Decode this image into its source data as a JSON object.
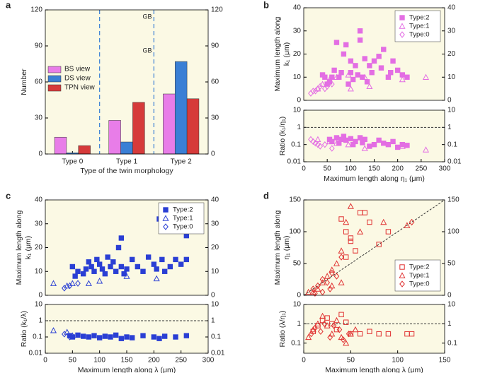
{
  "chart_data": [
    {
      "type": "bar",
      "panel": "a",
      "ylabel": [
        "Number"
      ],
      "xlabel": "Type of the twin morphology",
      "categories": [
        "Type 0",
        "Type 1",
        "Type 2"
      ],
      "series": [
        {
          "name": "BS view",
          "color": "#e87de8",
          "values": [
            14,
            28,
            50
          ]
        },
        {
          "name": "DS view",
          "color": "#3a7fd5",
          "values": [
            1,
            10,
            77
          ]
        },
        {
          "name": "TPN view",
          "color": "#d63a3a",
          "values": [
            7,
            43,
            46
          ]
        }
      ],
      "ylim": [
        0,
        120
      ],
      "yticks": [
        0,
        30,
        60,
        90,
        120
      ],
      "right_axis": true,
      "legend": "middle-left",
      "annotations": [
        "GB",
        "GB"
      ]
    },
    {
      "type": "scatter",
      "panel": "b",
      "ylabel": [
        "Maximum length along",
        "k₁ (μm)"
      ],
      "xlim": [
        0,
        300
      ],
      "ylim": [
        0,
        40
      ],
      "yticks": [
        0,
        10,
        20,
        30,
        40
      ],
      "right_axis": true,
      "legend": "top-right",
      "series": [
        {
          "name": "Type:2",
          "color": "#e36ee3",
          "marker": "square",
          "x": [
            70,
            85,
            90,
            100,
            100,
            110,
            120,
            120,
            125,
            130,
            140,
            150,
            160,
            165,
            170,
            180,
            185,
            190,
            200,
            210,
            220,
            55,
            60,
            65,
            75,
            80,
            95,
            105,
            115,
            135,
            145,
            40,
            45,
            50
          ],
          "values": [
            25,
            20,
            24,
            17,
            12,
            15,
            30,
            26,
            10,
            18,
            15,
            17,
            19,
            14,
            22,
            10,
            12,
            17,
            13,
            11,
            10,
            8,
            10,
            13,
            10,
            12,
            7,
            9,
            11,
            8,
            12,
            11,
            10,
            7
          ]
        },
        {
          "name": "Type:1",
          "color": "#e36ee3",
          "marker": "triangle-open",
          "x": [
            30,
            40,
            55,
            70,
            95,
            130,
            140,
            210,
            260,
            100
          ],
          "values": [
            5,
            7,
            9,
            10,
            11,
            10,
            6,
            9,
            10,
            5
          ]
        },
        {
          "name": "Type:0",
          "color": "#e36ee3",
          "marker": "diamond-open",
          "x": [
            15,
            20,
            25,
            30,
            35,
            45,
            50,
            60
          ],
          "values": [
            3,
            4,
            4,
            5,
            6,
            5,
            6,
            7
          ]
        }
      ]
    },
    {
      "type": "scatter",
      "ylabel": [
        "Ratio (k₁/η₁)"
      ],
      "xlabel": "Maximum length along η₁ (μm)",
      "xlim": [
        0,
        300
      ],
      "xticks": [
        0,
        50,
        100,
        150,
        200,
        250,
        300
      ],
      "ylim": [
        0.01,
        10
      ],
      "yticks": [
        0.01,
        0.1,
        1,
        10
      ],
      "log_y": true,
      "right_axis": true,
      "refline": 1,
      "series": [
        {
          "color": "#e36ee3",
          "marker": "square",
          "x": [
            55,
            60,
            70,
            75,
            80,
            85,
            90,
            100,
            105,
            110,
            120,
            125,
            130,
            140,
            150,
            160,
            170,
            180,
            190,
            200,
            210,
            220
          ],
          "values": [
            0.2,
            0.15,
            0.25,
            0.12,
            0.2,
            0.3,
            0.18,
            0.22,
            0.1,
            0.15,
            0.25,
            0.13,
            0.2,
            0.08,
            0.1,
            0.18,
            0.12,
            0.1,
            0.15,
            0.07,
            0.1,
            0.09
          ]
        },
        {
          "color": "#e36ee3",
          "marker": "triangle-open",
          "x": [
            30,
            55,
            70,
            95,
            130,
            210,
            260
          ],
          "values": [
            0.2,
            0.15,
            0.12,
            0.1,
            0.06,
            0.08,
            0.05
          ]
        },
        {
          "color": "#e36ee3",
          "marker": "diamond-open",
          "x": [
            15,
            20,
            25,
            30,
            35,
            45,
            60
          ],
          "values": [
            0.2,
            0.15,
            0.12,
            0.1,
            0.08,
            0.1,
            0.06
          ]
        }
      ]
    },
    {
      "type": "scatter",
      "panel": "c",
      "ylabel": [
        "Maximum length along",
        "k₁ (μm)"
      ],
      "xlim": [
        0,
        300
      ],
      "ylim": [
        0,
        40
      ],
      "yticks": [
        0,
        10,
        20,
        30,
        40
      ],
      "right_axis": true,
      "legend": "top-right",
      "series": [
        {
          "name": "Type:2",
          "color": "#2a3fd4",
          "marker": "square",
          "x": [
            50,
            55,
            60,
            70,
            75,
            80,
            85,
            90,
            95,
            100,
            105,
            110,
            115,
            120,
            125,
            130,
            135,
            140,
            140,
            145,
            150,
            160,
            170,
            180,
            190,
            200,
            205,
            210,
            215,
            220,
            230,
            240,
            250,
            260,
            260
          ],
          "values": [
            12,
            8,
            10,
            9,
            11,
            14,
            12,
            10,
            15,
            13,
            11,
            9,
            16,
            12,
            14,
            10,
            20,
            24,
            12,
            9,
            11,
            15,
            12,
            10,
            16,
            13,
            11,
            32,
            15,
            10,
            12,
            15,
            13,
            25,
            15
          ]
        },
        {
          "name": "Type:1",
          "color": "#2a3fd4",
          "marker": "triangle-open",
          "x": [
            15,
            40,
            50,
            80,
            100,
            150,
            205
          ],
          "values": [
            5,
            4,
            5,
            5,
            6,
            8,
            7
          ]
        },
        {
          "name": "Type:0",
          "color": "#2a3fd4",
          "marker": "diamond-open",
          "x": [
            35,
            45,
            60
          ],
          "values": [
            3,
            4,
            5
          ]
        }
      ]
    },
    {
      "type": "scatter",
      "ylabel": [
        "Ratio (k₁/λ)"
      ],
      "xlabel": "Maximum length along λ (μm)",
      "xlim": [
        0,
        300
      ],
      "xticks": [
        0,
        50,
        100,
        150,
        200,
        250,
        300
      ],
      "ylim": [
        0.01,
        10
      ],
      "yticks": [
        0.01,
        0.1,
        1,
        10
      ],
      "log_y": true,
      "right_axis": true,
      "refline": 1,
      "series": [
        {
          "color": "#2a3fd4",
          "marker": "square",
          "x": [
            45,
            50,
            60,
            70,
            80,
            90,
            100,
            110,
            120,
            130,
            140,
            150,
            160,
            180,
            200,
            210,
            220,
            240,
            260
          ],
          "values": [
            0.12,
            0.1,
            0.13,
            0.11,
            0.1,
            0.12,
            0.09,
            0.11,
            0.1,
            0.13,
            0.08,
            0.1,
            0.09,
            0.12,
            0.1,
            0.08,
            0.11,
            0.1,
            0.12
          ]
        },
        {
          "color": "#2a3fd4",
          "marker": "triangle-open",
          "x": [
            15,
            40,
            50
          ],
          "values": [
            0.25,
            0.2,
            0.12
          ]
        },
        {
          "color": "#2a3fd4",
          "marker": "diamond-open",
          "x": [
            35,
            45
          ],
          "values": [
            0.15,
            0.1
          ]
        }
      ]
    },
    {
      "type": "scatter",
      "panel": "d",
      "ylabel": [
        "Maximum length along",
        "η₁ (μm)"
      ],
      "xlim": [
        0,
        150
      ],
      "ylim": [
        0,
        150
      ],
      "yticks": [
        0,
        50,
        100,
        150
      ],
      "right_axis": true,
      "legend": "bottom-right",
      "diagonal": true,
      "series": [
        {
          "name": "Type:2",
          "color": "#e03030",
          "marker": "square-open",
          "x": [
            40,
            45,
            50,
            55,
            60,
            65,
            70,
            80,
            90,
            50,
            45
          ],
          "values": [
            120,
            100,
            90,
            70,
            130,
            130,
            115,
            80,
            100,
            85,
            60
          ]
        },
        {
          "name": "Type:1",
          "color": "#e03030",
          "marker": "triangle-open",
          "x": [
            50,
            60,
            45,
            40,
            35,
            30,
            25,
            20,
            15,
            10,
            30,
            40,
            85,
            110,
            5
          ],
          "values": [
            140,
            100,
            115,
            70,
            50,
            40,
            30,
            20,
            10,
            5,
            15,
            20,
            115,
            110,
            5
          ]
        },
        {
          "name": "Type:0",
          "color": "#e03030",
          "marker": "diamond-open",
          "x": [
            10,
            15,
            20,
            25,
            30,
            35,
            40,
            20,
            12,
            28,
            115
          ],
          "values": [
            10,
            15,
            25,
            20,
            35,
            30,
            60,
            5,
            3,
            10,
            115
          ]
        }
      ]
    },
    {
      "type": "scatter",
      "ylabel": [
        "Ratio (λ/η₁)"
      ],
      "xlabel": "Maximum length along λ (μm)",
      "xlim": [
        0,
        150
      ],
      "xticks": [
        0,
        50,
        100,
        150
      ],
      "ylim": [
        0.03,
        10
      ],
      "yticks": [
        0.1,
        1,
        10
      ],
      "log_y": true,
      "right_axis": true,
      "refline": 1,
      "series": [
        {
          "color": "#e03030",
          "marker": "square-open",
          "x": [
            10,
            15,
            20,
            25,
            30,
            35,
            40,
            45,
            50,
            60,
            70,
            80,
            90,
            110,
            115
          ],
          "values": [
            0.4,
            0.8,
            1.5,
            2,
            1,
            0.5,
            3,
            1.2,
            0.3,
            0.3,
            0.4,
            0.3,
            0.3,
            0.3,
            0.3
          ]
        },
        {
          "color": "#e03030",
          "marker": "triangle-open",
          "x": [
            5,
            10,
            15,
            20,
            25,
            30,
            35,
            40,
            45,
            50,
            55
          ],
          "values": [
            0.2,
            0.5,
            1,
            2.5,
            0.8,
            0.3,
            1.5,
            0.2,
            0.1,
            0.3,
            0.5
          ]
        },
        {
          "color": "#e03030",
          "marker": "diamond-open",
          "x": [
            8,
            12,
            18,
            22,
            28,
            32,
            38,
            42,
            48
          ],
          "values": [
            0.3,
            0.6,
            0.4,
            1,
            0.2,
            0.8,
            0.5,
            0.15,
            0.3
          ]
        }
      ]
    }
  ]
}
